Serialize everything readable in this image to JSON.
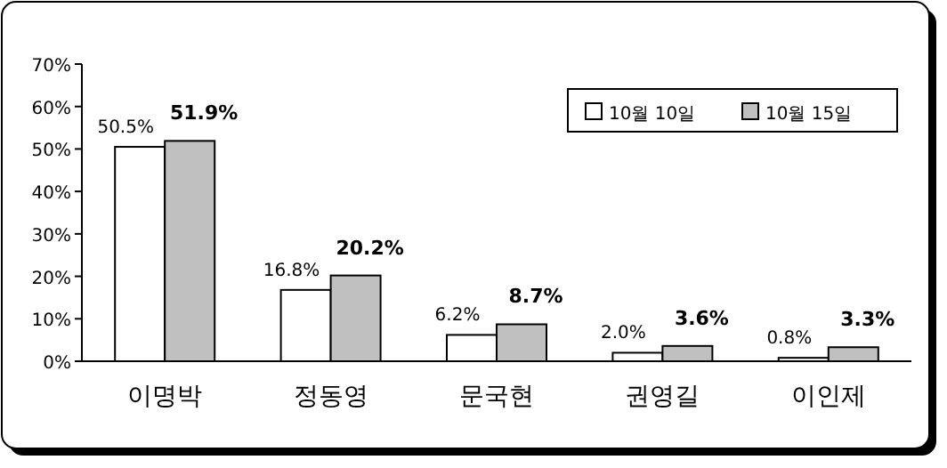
{
  "chart_data": {
    "type": "bar",
    "categories": [
      "이명박",
      "정동영",
      "문국현",
      "권영길",
      "이인제"
    ],
    "series": [
      {
        "name": "10월 10일",
        "color": "#ffffff",
        "values": [
          50.5,
          16.8,
          6.2,
          2.0,
          0.8
        ],
        "value_labels": [
          "50.5%",
          "16.8%",
          "6.2%",
          "2.0%",
          "0.8%"
        ]
      },
      {
        "name": "10월 15일",
        "color": "#c0c0c0",
        "values": [
          51.9,
          20.2,
          8.7,
          3.6,
          3.3
        ],
        "value_labels": [
          "51.9%",
          "20.2%",
          "8.7%",
          "3.6%",
          "3.3%"
        ]
      }
    ],
    "ylim": [
      0,
      70
    ],
    "yticks": [
      {
        "value": 0,
        "label": "0%"
      },
      {
        "value": 10,
        "label": "10%"
      },
      {
        "value": 20,
        "label": "20%"
      },
      {
        "value": 30,
        "label": "30%"
      },
      {
        "value": 40,
        "label": "40%"
      },
      {
        "value": 50,
        "label": "50%"
      },
      {
        "value": 60,
        "label": "60%"
      },
      {
        "value": 70,
        "label": "70%"
      }
    ],
    "legend": "top right",
    "grid": false
  }
}
